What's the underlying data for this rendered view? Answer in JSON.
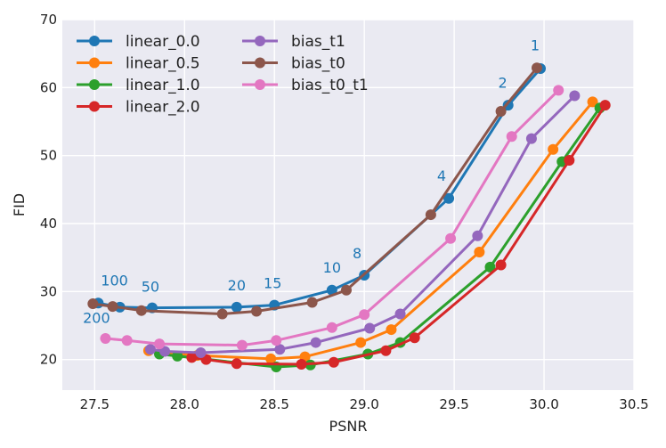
{
  "chart_data": {
    "type": "line",
    "title": "",
    "xlabel": "PSNR",
    "ylabel": "FID",
    "xlim": [
      27.32,
      30.5
    ],
    "ylim": [
      15.5,
      70
    ],
    "xticks": [
      27.5,
      28.0,
      28.5,
      29.0,
      29.5,
      30.0,
      30.5
    ],
    "xtick_labels": [
      "27.5",
      "28.0",
      "28.5",
      "29.0",
      "29.5",
      "30.0",
      "30.5"
    ],
    "yticks": [
      20,
      30,
      40,
      50,
      60,
      70
    ],
    "ytick_labels": [
      "20",
      "30",
      "40",
      "50",
      "60",
      "70"
    ],
    "grid": true,
    "legend_position": "top-left",
    "series": [
      {
        "name": "linear_0.0",
        "color": "#1f77b4",
        "x": [
          27.52,
          27.64,
          27.82,
          28.29,
          28.5,
          28.82,
          29.0,
          29.47,
          29.8,
          29.98
        ],
        "y": [
          28.3,
          27.7,
          27.6,
          27.7,
          28.0,
          30.2,
          32.4,
          43.7,
          57.4,
          62.8
        ]
      },
      {
        "name": "linear_0.5",
        "color": "#ff7f0e",
        "x": [
          27.8,
          28.07,
          28.48,
          28.67,
          28.98,
          29.15,
          29.64,
          30.05,
          30.27
        ],
        "y": [
          21.3,
          20.6,
          20.1,
          20.4,
          22.5,
          24.4,
          35.8,
          50.9,
          57.9
        ]
      },
      {
        "name": "linear_1.0",
        "color": "#2ca02c",
        "x": [
          27.86,
          27.96,
          28.51,
          28.7,
          29.02,
          29.2,
          29.7,
          30.1,
          30.31
        ],
        "y": [
          20.8,
          20.5,
          18.9,
          19.2,
          20.8,
          22.5,
          33.6,
          49.1,
          57.0
        ]
      },
      {
        "name": "linear_2.0",
        "color": "#d62728",
        "x": [
          28.04,
          28.12,
          28.29,
          28.65,
          28.83,
          29.12,
          29.28,
          29.76,
          30.14,
          30.34
        ],
        "y": [
          20.3,
          20.0,
          19.4,
          19.3,
          19.6,
          21.3,
          23.2,
          33.9,
          49.3,
          57.4
        ]
      },
      {
        "name": "bias_t1",
        "color": "#9467bd",
        "x": [
          27.81,
          27.89,
          28.09,
          28.53,
          28.73,
          29.03,
          29.2,
          29.63,
          29.93,
          30.17
        ],
        "y": [
          21.5,
          21.2,
          21.0,
          21.5,
          22.5,
          24.6,
          26.7,
          38.2,
          52.5,
          58.8
        ]
      },
      {
        "name": "bias_t0",
        "color": "#8c564b",
        "x": [
          27.49,
          27.6,
          27.76,
          28.21,
          28.4,
          28.71,
          28.9,
          29.37,
          29.76,
          29.96
        ],
        "y": [
          28.2,
          27.8,
          27.2,
          26.7,
          27.1,
          28.4,
          30.2,
          41.3,
          56.5,
          62.9
        ]
      },
      {
        "name": "bias_t0_t1",
        "color": "#e377c2",
        "x": [
          27.56,
          27.68,
          27.86,
          28.32,
          28.51,
          28.82,
          29.0,
          29.48,
          29.82,
          30.08
        ],
        "y": [
          23.1,
          22.8,
          22.3,
          22.1,
          22.8,
          24.7,
          26.6,
          37.8,
          52.8,
          59.6
        ]
      }
    ],
    "annotations": [
      {
        "text": "1",
        "x": 29.95,
        "y": 65.5,
        "color": "#1f77b4"
      },
      {
        "text": "2",
        "x": 29.77,
        "y": 60.0,
        "color": "#1f77b4"
      },
      {
        "text": "4",
        "x": 29.43,
        "y": 46.3,
        "color": "#1f77b4"
      },
      {
        "text": "8",
        "x": 28.96,
        "y": 34.9,
        "color": "#1f77b4"
      },
      {
        "text": "10",
        "x": 28.82,
        "y": 32.8,
        "color": "#1f77b4"
      },
      {
        "text": "15",
        "x": 28.49,
        "y": 30.5,
        "color": "#1f77b4"
      },
      {
        "text": "20",
        "x": 28.29,
        "y": 30.2,
        "color": "#1f77b4"
      },
      {
        "text": "50",
        "x": 27.81,
        "y": 30.0,
        "color": "#1f77b4"
      },
      {
        "text": "100",
        "x": 27.61,
        "y": 30.9,
        "color": "#1f77b4"
      },
      {
        "text": "200",
        "x": 27.51,
        "y": 25.4,
        "color": "#1f77b4"
      }
    ]
  }
}
